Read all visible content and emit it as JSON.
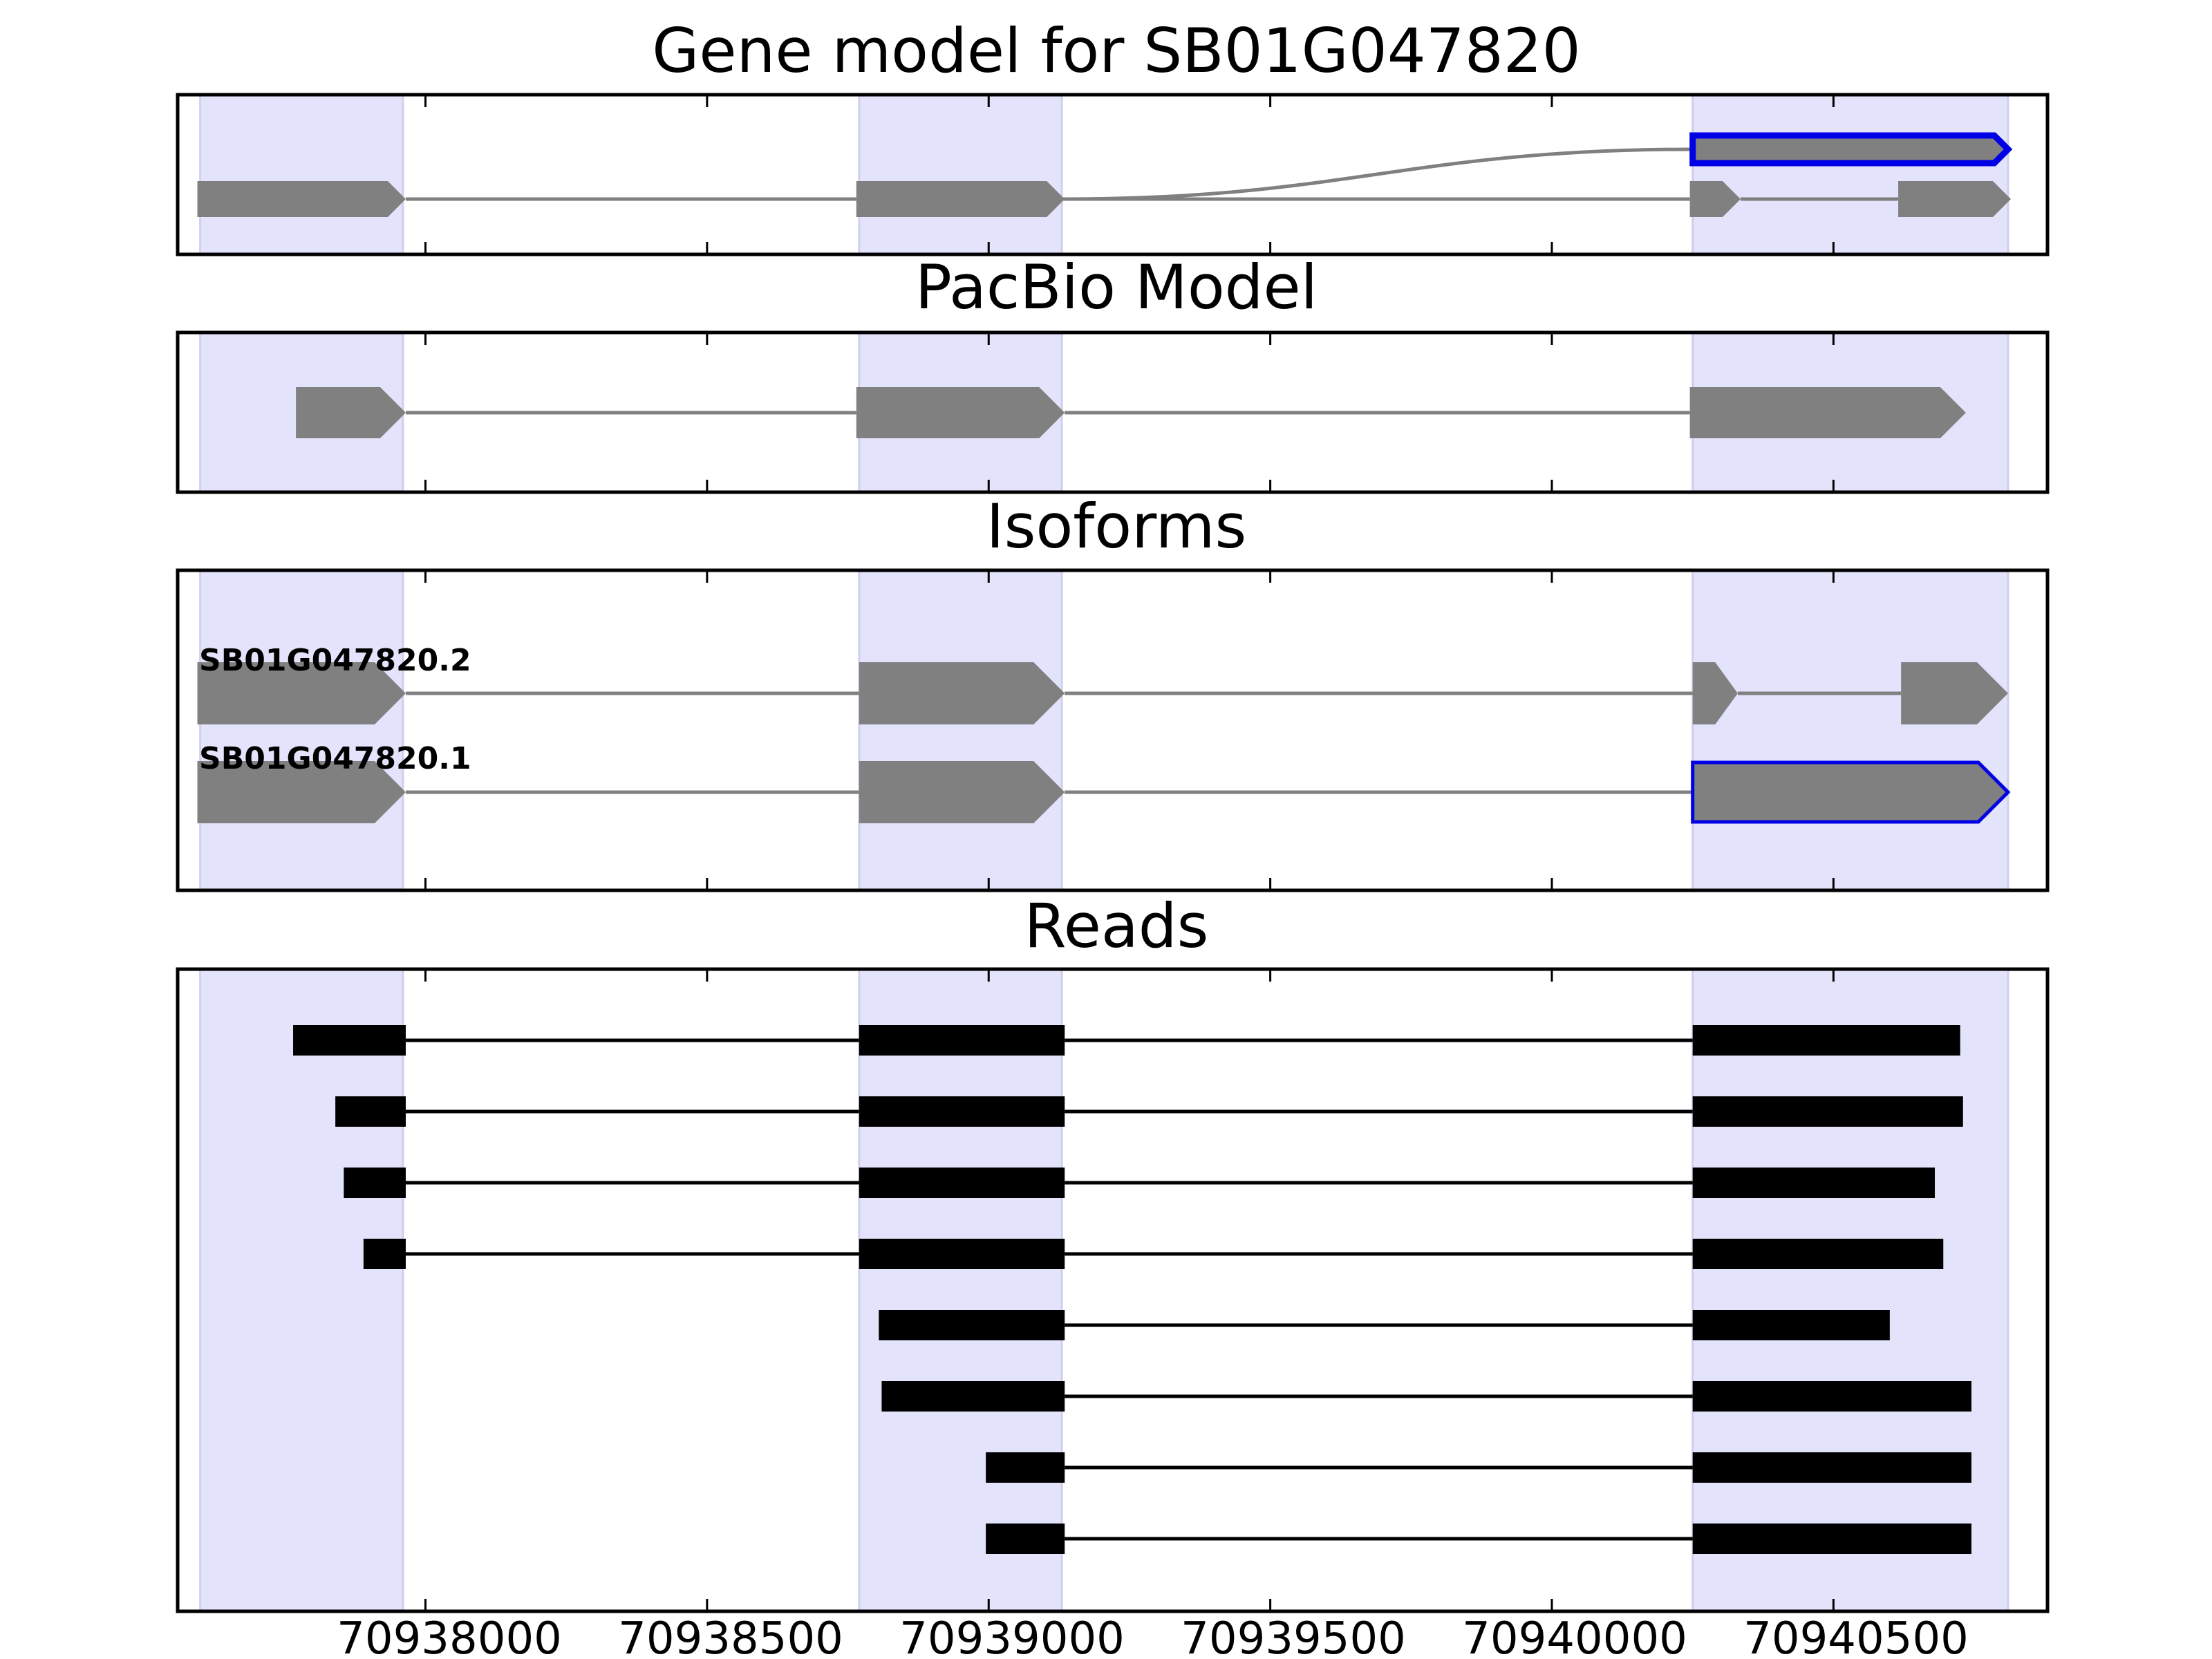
{
  "figure": {
    "panels": [
      {
        "key": "gene_model",
        "title": "Gene model for SB01G047820"
      },
      {
        "key": "pacbio",
        "title": "PacBio Model"
      },
      {
        "key": "isoforms",
        "title": "Isoforms"
      },
      {
        "key": "reads",
        "title": "Reads"
      }
    ],
    "x_ticks": [
      "70938000",
      "70938500",
      "70939000",
      "70939500",
      "70940000",
      "70940500"
    ],
    "colors": {
      "shade": "#e3e3fb",
      "shade_edge": "#cfcfee",
      "exon_gray": "#808080",
      "highlight_blue": "#0000e6",
      "read_black": "#000000",
      "axis": "#000000"
    }
  },
  "chart_data": {
    "type": "gene_structure",
    "x_axis": {
      "xlim": [
        70937560,
        70940880
      ],
      "ticks": [
        70938000,
        70938500,
        70939000,
        70939500,
        70940000,
        70940500
      ]
    },
    "shaded_regions": [
      [
        70937600,
        70937960
      ],
      [
        70938770,
        70939130
      ],
      [
        70940250,
        70940810
      ]
    ],
    "gene_model": {
      "rows": [
        {
          "exons": [
            [
              70940250,
              70940810
            ]
          ],
          "highlight": true,
          "splice_from": 70939130
        },
        {
          "exons": [
            [
              70937595,
              70937965
            ],
            [
              70938765,
              70939135
            ],
            [
              70940245,
              70940335
            ],
            [
              70940615,
              70940815
            ]
          ]
        }
      ]
    },
    "pacbio_model": {
      "rows": [
        {
          "exons": [
            [
              70937770,
              70937965
            ],
            [
              70938765,
              70939135
            ],
            [
              70940245,
              70940735
            ]
          ]
        }
      ]
    },
    "isoforms": [
      {
        "name": "SB01G047820.2",
        "exons": [
          [
            70937595,
            70937965
          ],
          [
            70938770,
            70939135
          ],
          [
            70940250,
            70940330
          ],
          [
            70940620,
            70940810
          ]
        ],
        "highlight": false
      },
      {
        "name": "SB01G047820.1",
        "exons": [
          [
            70937595,
            70937965
          ],
          [
            70938770,
            70939135
          ],
          [
            70940250,
            70940810
          ]
        ],
        "highlight": true
      }
    ],
    "reads": [
      {
        "exons": [
          [
            70937765,
            70937965
          ],
          [
            70938770,
            70939135
          ],
          [
            70940250,
            70940725
          ]
        ]
      },
      {
        "exons": [
          [
            70937840,
            70937965
          ],
          [
            70938770,
            70939135
          ],
          [
            70940250,
            70940730
          ]
        ]
      },
      {
        "exons": [
          [
            70937855,
            70937965
          ],
          [
            70938770,
            70939135
          ],
          [
            70940250,
            70940680
          ]
        ]
      },
      {
        "exons": [
          [
            70937890,
            70937965
          ],
          [
            70938770,
            70939135
          ],
          [
            70940250,
            70940695
          ]
        ]
      },
      {
        "exons": [
          [
            70938805,
            70939135
          ],
          [
            70940250,
            70940600
          ]
        ]
      },
      {
        "exons": [
          [
            70938810,
            70939135
          ],
          [
            70940250,
            70940745
          ]
        ]
      },
      {
        "exons": [
          [
            70938995,
            70939135
          ],
          [
            70940250,
            70940745
          ]
        ]
      },
      {
        "exons": [
          [
            70938995,
            70939135
          ],
          [
            70940250,
            70940745
          ]
        ]
      }
    ]
  }
}
